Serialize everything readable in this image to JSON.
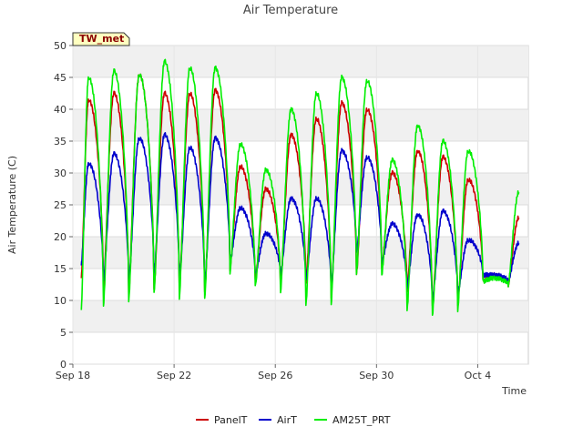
{
  "chart_data": {
    "type": "line",
    "title": "Air Temperature",
    "xlabel": "Time",
    "ylabel": "Air Temperature (C)",
    "station_label": "TW_met",
    "ylim": [
      0,
      50
    ],
    "xlim": [
      "2023-09-18",
      "2023-10-06"
    ],
    "yticks": [
      0,
      5,
      10,
      15,
      20,
      25,
      30,
      35,
      40,
      45,
      50
    ],
    "xticks": [
      {
        "date": "2023-09-18",
        "label": "Sep 18"
      },
      {
        "date": "2023-09-22",
        "label": "Sep 22"
      },
      {
        "date": "2023-09-26",
        "label": "Sep 26"
      },
      {
        "date": "2023-09-30",
        "label": "Sep 30"
      },
      {
        "date": "2023-10-04",
        "label": "Oct 4"
      }
    ],
    "grid": "alternating horizontal bands",
    "legend": "bottom",
    "series": [
      {
        "name": "PanelT",
        "color": "#cc0000",
        "x": [
          "2023-09-18 08:00",
          "2023-09-18 15:00",
          "2023-09-19 05:00",
          "2023-09-19 15:00",
          "2023-09-20 05:00",
          "2023-09-20 15:00",
          "2023-09-21 05:00",
          "2023-09-21 15:00",
          "2023-09-22 05:00",
          "2023-09-22 15:00",
          "2023-09-23 05:00",
          "2023-09-23 15:00",
          "2023-09-24 05:00",
          "2023-09-24 15:00",
          "2023-09-25 05:00",
          "2023-09-25 15:00",
          "2023-09-26 05:00",
          "2023-09-26 15:00",
          "2023-09-27 05:00",
          "2023-09-27 15:00",
          "2023-09-28 05:00",
          "2023-09-28 15:00",
          "2023-09-29 05:00",
          "2023-09-29 15:00",
          "2023-09-30 05:00",
          "2023-09-30 15:00",
          "2023-10-01 05:00",
          "2023-10-01 15:00",
          "2023-10-02 05:00",
          "2023-10-02 15:00",
          "2023-10-03 05:00",
          "2023-10-03 15:00",
          "2023-10-04 05:00",
          "2023-10-04 15:00",
          "2023-10-05 05:00",
          "2023-10-05 15:00"
        ],
        "y": [
          13.5,
          41.5,
          12.0,
          42.5,
          11.0,
          45.5,
          11.5,
          42.5,
          12.0,
          42.5,
          11.0,
          43.0,
          15.0,
          31.0,
          13.0,
          27.5,
          12.5,
          36.0,
          12.5,
          38.5,
          10.5,
          41.0,
          14.0,
          40.0,
          15.0,
          30.0,
          11.5,
          33.5,
          9.0,
          32.5,
          9.5,
          29.0,
          13.0,
          14.0,
          12.5,
          23.0
        ]
      },
      {
        "name": "AirT",
        "color": "#0000cc",
        "x": [
          "2023-09-18 08:00",
          "2023-09-18 15:00",
          "2023-09-19 05:00",
          "2023-09-19 15:00",
          "2023-09-20 05:00",
          "2023-09-20 15:00",
          "2023-09-21 05:00",
          "2023-09-21 15:00",
          "2023-09-22 05:00",
          "2023-09-22 15:00",
          "2023-09-23 05:00",
          "2023-09-23 15:00",
          "2023-09-24 05:00",
          "2023-09-24 15:00",
          "2023-09-25 05:00",
          "2023-09-25 15:00",
          "2023-09-26 05:00",
          "2023-09-26 15:00",
          "2023-09-27 05:00",
          "2023-09-27 15:00",
          "2023-09-28 05:00",
          "2023-09-28 15:00",
          "2023-09-29 05:00",
          "2023-09-29 15:00",
          "2023-09-30 05:00",
          "2023-09-30 15:00",
          "2023-10-01 05:00",
          "2023-10-01 15:00",
          "2023-10-02 05:00",
          "2023-10-02 15:00",
          "2023-10-03 05:00",
          "2023-10-03 15:00",
          "2023-10-04 05:00",
          "2023-10-04 15:00",
          "2023-10-05 05:00",
          "2023-10-05 15:00"
        ],
        "y": [
          15.5,
          31.5,
          13.0,
          33.0,
          12.5,
          35.5,
          14.0,
          36.0,
          13.0,
          34.0,
          12.5,
          35.5,
          16.0,
          24.5,
          14.0,
          20.5,
          14.0,
          26.0,
          13.0,
          26.0,
          12.0,
          33.5,
          17.5,
          32.5,
          16.0,
          22.0,
          12.0,
          23.5,
          10.0,
          24.0,
          11.0,
          19.5,
          14.0,
          14.0,
          13.0,
          19.0
        ]
      },
      {
        "name": "AM25T_PRT",
        "color": "#00ee00",
        "x": [
          "2023-09-18 08:00",
          "2023-09-18 15:00",
          "2023-09-19 05:00",
          "2023-09-19 15:00",
          "2023-09-20 05:00",
          "2023-09-20 15:00",
          "2023-09-21 05:00",
          "2023-09-21 15:00",
          "2023-09-22 05:00",
          "2023-09-22 15:00",
          "2023-09-23 05:00",
          "2023-09-23 15:00",
          "2023-09-24 05:00",
          "2023-09-24 15:00",
          "2023-09-25 05:00",
          "2023-09-25 15:00",
          "2023-09-26 05:00",
          "2023-09-26 15:00",
          "2023-09-27 05:00",
          "2023-09-27 15:00",
          "2023-09-28 05:00",
          "2023-09-28 15:00",
          "2023-09-29 05:00",
          "2023-09-29 15:00",
          "2023-09-30 05:00",
          "2023-09-30 15:00",
          "2023-10-01 05:00",
          "2023-10-01 15:00",
          "2023-10-02 05:00",
          "2023-10-02 15:00",
          "2023-10-03 05:00",
          "2023-10-03 15:00",
          "2023-10-04 05:00",
          "2023-10-04 15:00",
          "2023-10-05 05:00",
          "2023-10-05 15:00"
        ],
        "y": [
          8.5,
          45.0,
          9.0,
          46.0,
          10.0,
          45.5,
          11.0,
          47.5,
          10.5,
          46.5,
          10.0,
          46.5,
          14.5,
          34.5,
          12.0,
          30.5,
          11.5,
          40.0,
          9.0,
          42.5,
          9.5,
          45.0,
          14.0,
          44.5,
          14.0,
          32.0,
          8.5,
          37.5,
          7.5,
          35.0,
          8.5,
          33.5,
          13.0,
          13.5,
          12.5,
          27.0
        ]
      }
    ]
  }
}
